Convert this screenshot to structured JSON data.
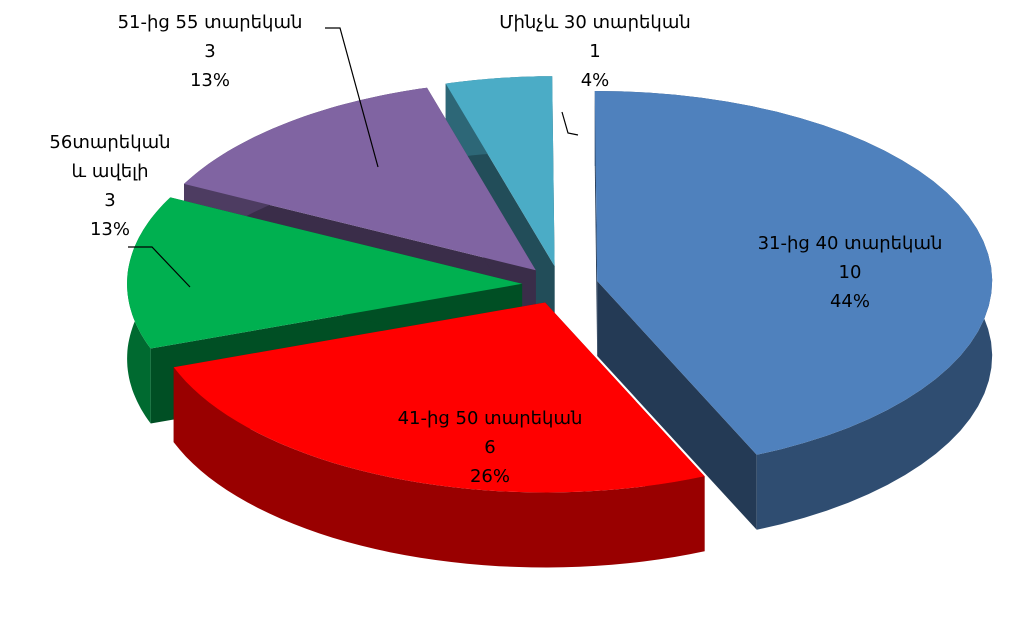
{
  "chart_data": {
    "type": "pie3d",
    "categories": [
      "Մինչև 30 տարեկան",
      "31-ից 40 տարեկան",
      "41-ից 50 տարեկան",
      "56տարեկան և ավելի",
      "51-ից 55 տարեկան"
    ],
    "values": [
      1,
      10,
      6,
      3,
      3
    ],
    "percent_labels": [
      "4%",
      "44%",
      "26%",
      "13%",
      "13%"
    ],
    "colors": [
      "#4bacc6",
      "#4f81bd",
      "#ff0000",
      "#00b050",
      "#8064a2"
    ]
  }
}
